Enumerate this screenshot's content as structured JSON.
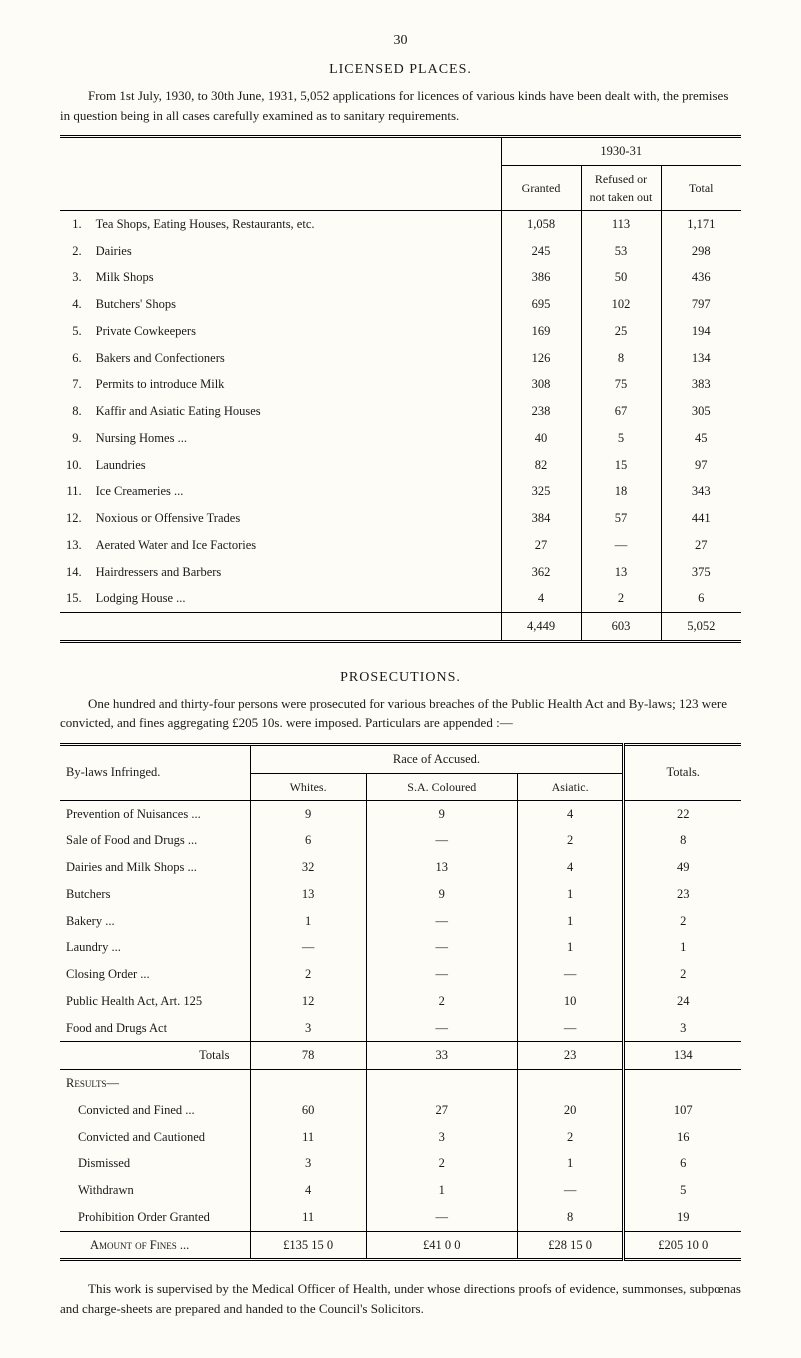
{
  "pageNumber": "30",
  "section1": {
    "title": "LICENSED PLACES.",
    "intro": "From 1st July, 1930, to 30th June, 1931, 5,052 applications for licences of various kinds have been dealt with, the premises in question being in all cases carefully examined as to sanitary requirements."
  },
  "table1": {
    "groupHeader": "1930-31",
    "cols": [
      "Granted",
      "Refused or not taken out",
      "Total"
    ],
    "rows": [
      {
        "n": "1.",
        "label": "Tea Shops, Eating Houses, Restaurants, etc.",
        "g": "1,058",
        "r": "113",
        "t": "1,171"
      },
      {
        "n": "2.",
        "label": "Dairies",
        "g": "245",
        "r": "53",
        "t": "298"
      },
      {
        "n": "3.",
        "label": "Milk Shops",
        "g": "386",
        "r": "50",
        "t": "436"
      },
      {
        "n": "4.",
        "label": "Butchers' Shops",
        "g": "695",
        "r": "102",
        "t": "797"
      },
      {
        "n": "5.",
        "label": "Private Cowkeepers",
        "g": "169",
        "r": "25",
        "t": "194"
      },
      {
        "n": "6.",
        "label": "Bakers and Confectioners",
        "g": "126",
        "r": "8",
        "t": "134"
      },
      {
        "n": "7.",
        "label": "Permits to introduce Milk",
        "g": "308",
        "r": "75",
        "t": "383"
      },
      {
        "n": "8.",
        "label": "Kaffir and Asiatic Eating Houses",
        "g": "238",
        "r": "67",
        "t": "305"
      },
      {
        "n": "9.",
        "label": "Nursing Homes ...",
        "g": "40",
        "r": "5",
        "t": "45"
      },
      {
        "n": "10.",
        "label": "Laundries",
        "g": "82",
        "r": "15",
        "t": "97"
      },
      {
        "n": "11.",
        "label": "Ice Creameries ...",
        "g": "325",
        "r": "18",
        "t": "343"
      },
      {
        "n": "12.",
        "label": "Noxious or Offensive Trades",
        "g": "384",
        "r": "57",
        "t": "441"
      },
      {
        "n": "13.",
        "label": "Aerated Water and Ice Factories",
        "g": "27",
        "r": "—",
        "t": "27"
      },
      {
        "n": "14.",
        "label": "Hairdressers and Barbers",
        "g": "362",
        "r": "13",
        "t": "375"
      },
      {
        "n": "15.",
        "label": "Lodging House ...",
        "g": "4",
        "r": "2",
        "t": "6"
      }
    ],
    "totals": {
      "g": "4,449",
      "r": "603",
      "t": "5,052"
    }
  },
  "section2": {
    "title": "PROSECUTIONS.",
    "intro": "One hundred and thirty-four persons were prosecuted for various breaches of the Public Health Act and By-laws; 123 were convicted, and fines aggregating £205 10s. were imposed.  Particulars are appended :—"
  },
  "table2": {
    "leftHeader": "By-laws Infringed.",
    "raceHeader": "Race of Accused.",
    "totalsHeader": "Totals.",
    "cols": [
      "Whites.",
      "S.A. Coloured",
      "Asiatic."
    ],
    "rows": [
      {
        "label": "Prevention of Nuisances ...",
        "w": "9",
        "c": "9",
        "a": "4",
        "t": "22"
      },
      {
        "label": "Sale of Food and Drugs ...",
        "w": "6",
        "c": "—",
        "a": "2",
        "t": "8"
      },
      {
        "label": "Dairies and Milk Shops ...",
        "w": "32",
        "c": "13",
        "a": "4",
        "t": "49"
      },
      {
        "label": "Butchers",
        "w": "13",
        "c": "9",
        "a": "1",
        "t": "23"
      },
      {
        "label": "Bakery ...",
        "w": "1",
        "c": "—",
        "a": "1",
        "t": "2"
      },
      {
        "label": "Laundry ...",
        "w": "—",
        "c": "—",
        "a": "1",
        "t": "1"
      },
      {
        "label": "Closing Order ...",
        "w": "2",
        "c": "—",
        "a": "—",
        "t": "2"
      },
      {
        "label": "Public Health Act, Art. 125",
        "w": "12",
        "c": "2",
        "a": "10",
        "t": "24"
      },
      {
        "label": "Food and Drugs Act",
        "w": "3",
        "c": "—",
        "a": "—",
        "t": "3"
      }
    ],
    "totalsRow": {
      "label": "Totals",
      "w": "78",
      "c": "33",
      "a": "23",
      "t": "134"
    },
    "resultsHeader": "Results—",
    "resultsRows": [
      {
        "label": "Convicted and Fined ...",
        "w": "60",
        "c": "27",
        "a": "20",
        "t": "107"
      },
      {
        "label": "Convicted and Cautioned",
        "w": "11",
        "c": "3",
        "a": "2",
        "t": "16"
      },
      {
        "label": "Dismissed",
        "w": "3",
        "c": "2",
        "a": "1",
        "t": "6"
      },
      {
        "label": "Withdrawn",
        "w": "4",
        "c": "1",
        "a": "—",
        "t": "5"
      },
      {
        "label": "Prohibition Order Granted",
        "w": "11",
        "c": "—",
        "a": "8",
        "t": "19"
      }
    ],
    "amountRow": {
      "label": "Amount of Fines ...",
      "w": "£135 15 0",
      "c": "£41 0 0",
      "a": "£28 15 0",
      "t": "£205 10 0"
    }
  },
  "footer": "This work is supervised by the Medical Officer of Health, under whose directions proofs of evidence, summonses, subpœnas and charge-sheets are prepared and handed to the Council's Solicitors."
}
